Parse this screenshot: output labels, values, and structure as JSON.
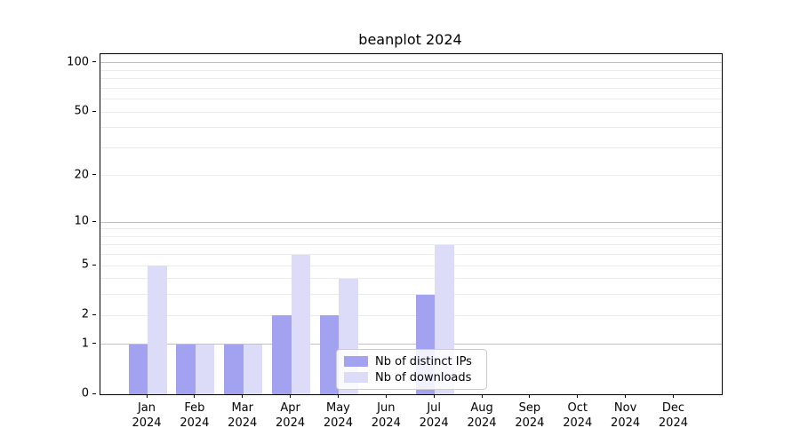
{
  "chart_data": {
    "type": "bar",
    "title": "beanplot 2024",
    "x_categories": [
      "Jan",
      "Feb",
      "Mar",
      "Apr",
      "May",
      "Jun",
      "Jul",
      "Aug",
      "Sep",
      "Oct",
      "Nov",
      "Dec"
    ],
    "x_year": "2024",
    "series": [
      {
        "name": "Nb of distinct IPs",
        "color": "#a2a2f0",
        "values": [
          1,
          1,
          1,
          2,
          2,
          0,
          3,
          0,
          0,
          0,
          0,
          0
        ]
      },
      {
        "name": "Nb of downloads",
        "color": "#dcdcf8",
        "values": [
          5,
          1,
          1,
          6,
          4,
          0,
          7,
          0,
          0,
          0,
          0,
          0
        ]
      }
    ],
    "yscale": "log10(1+x)",
    "ylim": [
      0,
      113
    ],
    "yticks": [
      {
        "value": 0,
        "label": "0"
      },
      {
        "value": 1,
        "label": "1"
      },
      {
        "value": 2,
        "label": "2"
      },
      {
        "value": 5,
        "label": "5"
      },
      {
        "value": 10,
        "label": "10"
      },
      {
        "value": 20,
        "label": "20"
      },
      {
        "value": 50,
        "label": "50"
      },
      {
        "value": 100,
        "label": "100"
      }
    ],
    "major_gridlines": [
      1,
      10,
      100
    ],
    "minor_gridlines": [
      2,
      3,
      4,
      5,
      6,
      7,
      8,
      9,
      20,
      30,
      40,
      50,
      60,
      70,
      80,
      90
    ],
    "grid": true,
    "legend_position": "inside-bottom-center",
    "colors": {
      "axis": "#000000",
      "major_grid": "#c0c0c0",
      "minor_grid": "#ebebeb",
      "legend_border": "#cccccc"
    }
  }
}
